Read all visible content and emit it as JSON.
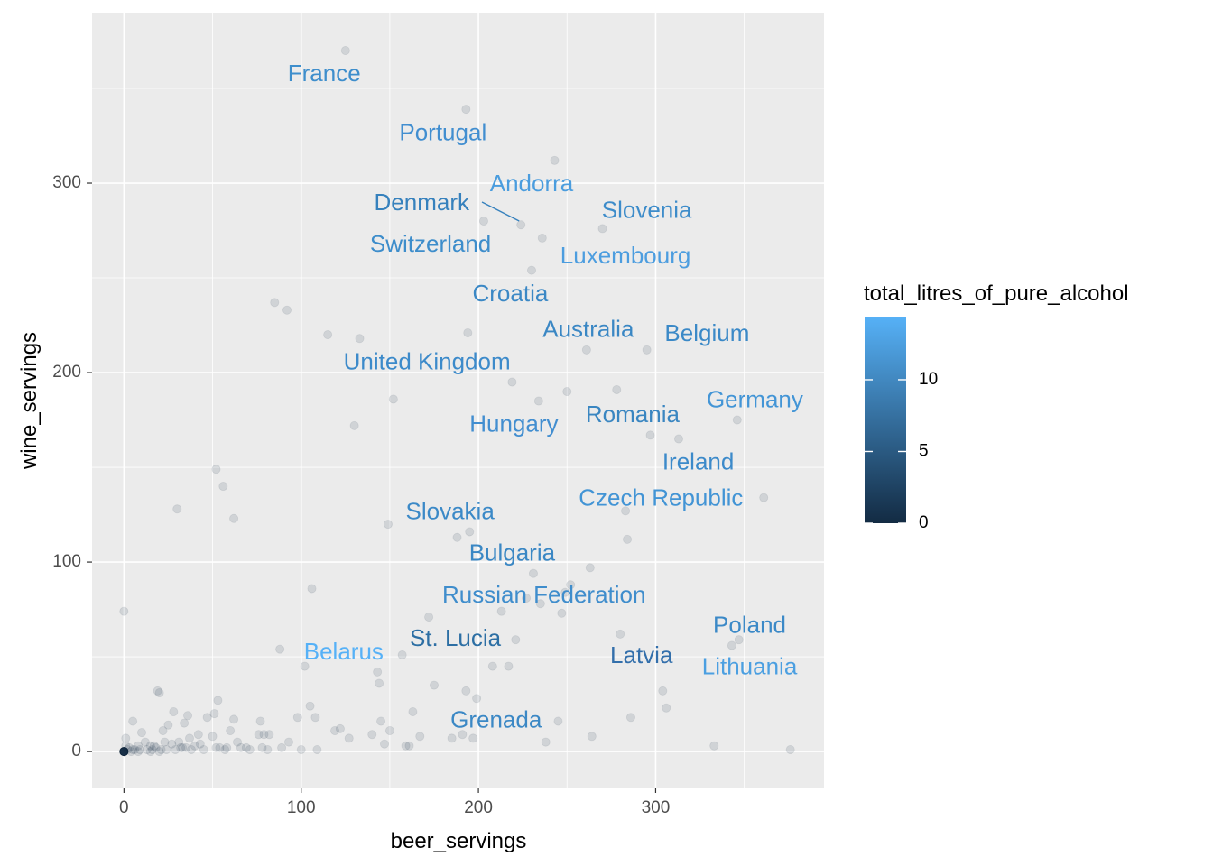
{
  "chart_data": {
    "type": "scatter",
    "title": "",
    "xlabel": "beer_servings",
    "ylabel": "wine_servings",
    "xlim": [
      -18,
      395
    ],
    "ylim": [
      -19,
      390
    ],
    "x_ticks": [
      0,
      100,
      200,
      300
    ],
    "y_ticks": [
      0,
      100,
      200,
      300
    ],
    "grid": true,
    "legend": {
      "title": "total_litres_of_pure_alcohol",
      "placement": "right",
      "type": "colorbar",
      "range": [
        0,
        14.4
      ],
      "ticks": [
        0,
        5,
        10
      ],
      "low_color": "#132B43",
      "high_color": "#56B1F7"
    },
    "point_color": "#132B43",
    "point_alpha": 0.12,
    "points": [
      [
        0,
        0
      ],
      [
        0,
        0
      ],
      [
        0,
        0
      ],
      [
        0,
        0
      ],
      [
        0,
        0
      ],
      [
        0,
        0
      ],
      [
        0,
        0
      ],
      [
        0,
        0
      ],
      [
        0,
        0
      ],
      [
        0,
        0
      ],
      [
        0,
        0
      ],
      [
        0,
        0
      ],
      [
        0,
        0
      ],
      [
        0,
        0
      ],
      [
        0,
        0
      ],
      [
        0,
        0
      ],
      [
        0,
        0
      ],
      [
        0,
        0
      ],
      [
        0,
        0
      ],
      [
        0,
        0
      ],
      [
        0,
        0
      ],
      [
        0,
        0
      ],
      [
        0,
        0
      ],
      [
        0,
        74
      ],
      [
        1,
        3
      ],
      [
        1,
        7
      ],
      [
        2,
        1
      ],
      [
        3,
        2
      ],
      [
        4,
        0
      ],
      [
        5,
        1
      ],
      [
        5,
        16
      ],
      [
        6,
        1
      ],
      [
        8,
        0
      ],
      [
        8,
        3
      ],
      [
        9,
        1
      ],
      [
        10,
        10
      ],
      [
        12,
        5
      ],
      [
        13,
        1
      ],
      [
        15,
        0
      ],
      [
        15,
        3
      ],
      [
        16,
        1
      ],
      [
        17,
        3
      ],
      [
        18,
        2
      ],
      [
        19,
        32
      ],
      [
        20,
        31
      ],
      [
        20,
        0
      ],
      [
        21,
        1
      ],
      [
        22,
        11
      ],
      [
        23,
        5
      ],
      [
        24,
        1
      ],
      [
        25,
        14
      ],
      [
        27,
        4
      ],
      [
        28,
        21
      ],
      [
        29,
        1
      ],
      [
        30,
        128
      ],
      [
        31,
        5
      ],
      [
        32,
        2
      ],
      [
        33,
        2
      ],
      [
        34,
        15
      ],
      [
        35,
        2
      ],
      [
        36,
        19
      ],
      [
        37,
        7
      ],
      [
        38,
        1
      ],
      [
        40,
        3
      ],
      [
        42,
        9
      ],
      [
        43,
        4
      ],
      [
        45,
        1
      ],
      [
        47,
        18
      ],
      [
        50,
        8
      ],
      [
        51,
        20
      ],
      [
        52,
        2
      ],
      [
        52,
        149
      ],
      [
        53,
        27
      ],
      [
        54,
        2
      ],
      [
        56,
        140
      ],
      [
        57,
        1
      ],
      [
        58,
        2
      ],
      [
        60,
        11
      ],
      [
        62,
        123
      ],
      [
        62,
        17
      ],
      [
        64,
        5
      ],
      [
        66,
        2
      ],
      [
        69,
        2
      ],
      [
        71,
        1
      ],
      [
        76,
        9
      ],
      [
        77,
        16
      ],
      [
        78,
        2
      ],
      [
        79,
        9
      ],
      [
        81,
        1
      ],
      [
        82,
        9
      ],
      [
        85,
        237
      ],
      [
        88,
        54
      ],
      [
        89,
        2
      ],
      [
        92,
        233
      ],
      [
        93,
        5
      ],
      [
        98,
        18
      ],
      [
        100,
        1
      ],
      [
        102,
        45
      ],
      [
        105,
        24
      ],
      [
        106,
        86
      ],
      [
        108,
        18
      ],
      [
        109,
        1
      ],
      [
        115,
        220
      ],
      [
        119,
        11
      ],
      [
        122,
        12
      ],
      [
        125,
        370
      ],
      [
        127,
        7
      ],
      [
        130,
        172
      ],
      [
        133,
        218
      ],
      [
        140,
        9
      ],
      [
        143,
        42
      ],
      [
        144,
        36
      ],
      [
        145,
        16
      ],
      [
        147,
        4
      ],
      [
        149,
        120
      ],
      [
        150,
        11
      ],
      [
        152,
        186
      ],
      [
        157,
        51
      ],
      [
        159,
        3
      ],
      [
        161,
        3
      ],
      [
        163,
        21
      ],
      [
        167,
        8
      ],
      [
        172,
        71
      ],
      [
        175,
        35
      ],
      [
        185,
        7
      ],
      [
        188,
        113
      ],
      [
        191,
        9
      ],
      [
        193,
        32
      ],
      [
        193,
        339
      ],
      [
        194,
        221
      ],
      [
        195,
        116
      ],
      [
        197,
        7
      ],
      [
        199,
        28
      ],
      [
        203,
        280
      ],
      [
        208,
        45
      ],
      [
        213,
        74
      ],
      [
        217,
        45
      ],
      [
        219,
        195
      ],
      [
        221,
        59
      ],
      [
        224,
        278
      ],
      [
        227,
        81
      ],
      [
        230,
        254
      ],
      [
        231,
        94
      ],
      [
        234,
        185
      ],
      [
        235,
        78
      ],
      [
        236,
        271
      ],
      [
        238,
        5
      ],
      [
        243,
        312
      ],
      [
        245,
        16
      ],
      [
        247,
        73
      ],
      [
        249,
        84
      ],
      [
        250,
        190
      ],
      [
        252,
        88
      ],
      [
        261,
        212
      ],
      [
        263,
        97
      ],
      [
        264,
        8
      ],
      [
        270,
        276
      ],
      [
        278,
        191
      ],
      [
        280,
        62
      ],
      [
        283,
        127
      ],
      [
        284,
        112
      ],
      [
        286,
        18
      ],
      [
        295,
        212
      ],
      [
        297,
        167
      ],
      [
        304,
        32
      ],
      [
        306,
        23
      ],
      [
        313,
        165
      ],
      [
        333,
        3
      ],
      [
        343,
        56
      ],
      [
        346,
        175
      ],
      [
        347,
        59
      ],
      [
        361,
        134
      ],
      [
        376,
        1
      ]
    ],
    "annotations": [
      {
        "text": "France",
        "x": 113,
        "y": 357,
        "color": "#3E8ECC"
      },
      {
        "text": "Portugal",
        "x": 180,
        "y": 326,
        "color": "#418ED0"
      },
      {
        "text": "Andorra",
        "x": 230,
        "y": 299,
        "color": "#4B9DDE"
      },
      {
        "text": "Denmark",
        "x": 168,
        "y": 289,
        "color": "#3681BD",
        "leader": [
          202,
          290,
          223,
          280
        ]
      },
      {
        "text": "Slovenia",
        "x": 295,
        "y": 285,
        "color": "#3D8CCA"
      },
      {
        "text": "Switzerland",
        "x": 173,
        "y": 267,
        "color": "#3D8DCB"
      },
      {
        "text": "Luxembourg",
        "x": 283,
        "y": 261,
        "color": "#4C9DDF"
      },
      {
        "text": "Croatia",
        "x": 218,
        "y": 241,
        "color": "#3B88C5"
      },
      {
        "text": "Australia",
        "x": 262,
        "y": 222,
        "color": "#3A87C4"
      },
      {
        "text": "Belgium",
        "x": 329,
        "y": 220,
        "color": "#3B89C7"
      },
      {
        "text": "United Kingdom",
        "x": 171,
        "y": 205,
        "color": "#3C8ACA"
      },
      {
        "text": "Germany",
        "x": 356,
        "y": 185,
        "color": "#4395D6"
      },
      {
        "text": "Romania",
        "x": 287,
        "y": 177,
        "color": "#3A86C1"
      },
      {
        "text": "Hungary",
        "x": 220,
        "y": 172,
        "color": "#428ED0"
      },
      {
        "text": "Ireland",
        "x": 324,
        "y": 152,
        "color": "#3C8ACA"
      },
      {
        "text": "Czech Republic",
        "x": 303,
        "y": 133,
        "color": "#4294D5"
      },
      {
        "text": "Slovakia",
        "x": 184,
        "y": 126,
        "color": "#3B89C7"
      },
      {
        "text": "Bulgaria",
        "x": 219,
        "y": 104,
        "color": "#3A87C4"
      },
      {
        "text": "Russian Federation",
        "x": 237,
        "y": 82,
        "color": "#3F8DCC"
      },
      {
        "text": "Poland",
        "x": 353,
        "y": 66,
        "color": "#3B89C7"
      },
      {
        "text": "St. Lucia",
        "x": 187,
        "y": 59,
        "color": "#2D6FA4"
      },
      {
        "text": "Belarus",
        "x": 124,
        "y": 52,
        "color": "#56B1F7"
      },
      {
        "text": "Latvia",
        "x": 292,
        "y": 50,
        "color": "#336FAB"
      },
      {
        "text": "Lithuania",
        "x": 353,
        "y": 44,
        "color": "#4B9FE1"
      },
      {
        "text": "Grenada",
        "x": 210,
        "y": 16,
        "color": "#3B88C5"
      }
    ]
  }
}
